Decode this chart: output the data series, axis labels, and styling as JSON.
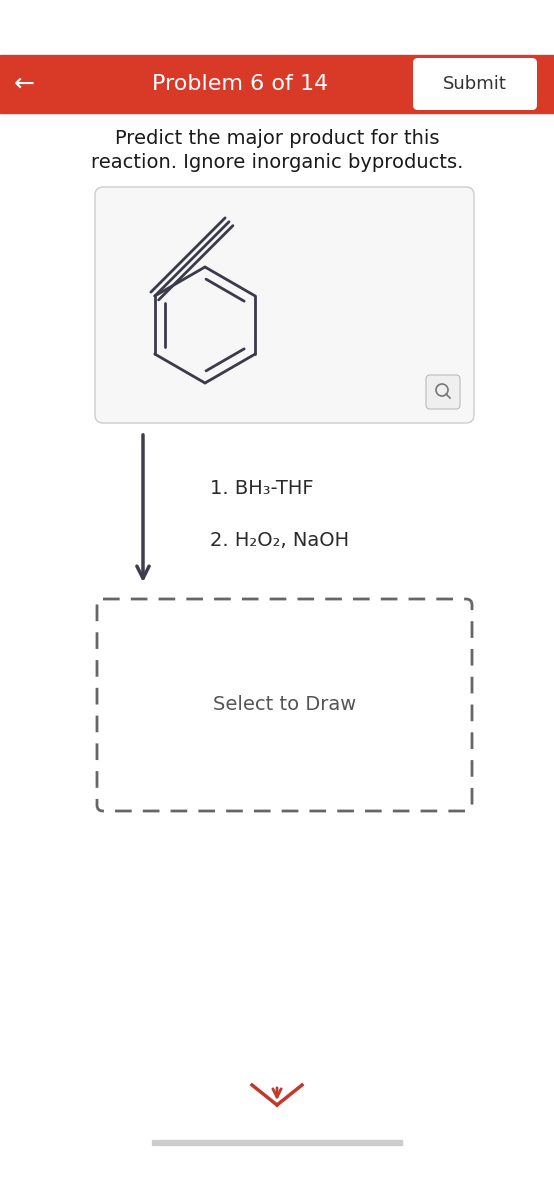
{
  "header_color": "#d93a28",
  "header_text": "Problem 6 of 14",
  "header_text_color": "#ffffff",
  "back_arrow": "←",
  "submit_text": "Submit",
  "submit_bg": "#ffffff",
  "submit_text_color": "#333333",
  "instruction_line1": "Predict the major product for this",
  "instruction_line2": "reaction. Ignore inorganic byproducts.",
  "instruction_color": "#1a1a1a",
  "reagent_line1": "1. BH₃-THF",
  "reagent_line2": "2. H₂O₂, NaOH",
  "reagent_color": "#2a2a2a",
  "select_text": "Select to Draw",
  "select_color": "#555555",
  "molecule_box_bg": "#f7f7f7",
  "molecule_box_edge": "#cccccc",
  "dashed_box_color": "#666666",
  "arrow_color": "#3d3d4d",
  "chevron_color": "#c0392b",
  "bg_color": "#ffffff",
  "bottom_bar_color": "#cccccc",
  "bond_color": "#3a3a4a",
  "mag_bg": "#efefef",
  "mag_edge": "#bbbbbb"
}
